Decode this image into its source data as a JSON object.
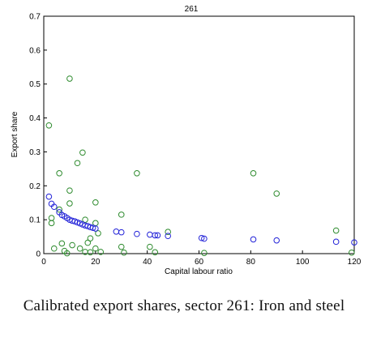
{
  "caption": "Calibrated export shares, sector 261: Iron and steel",
  "chart_data": {
    "type": "scatter",
    "title": "261",
    "xlabel": "Capital labour ratio",
    "ylabel": "Export share",
    "xlim": [
      0,
      120
    ],
    "ylim": [
      0,
      0.7
    ],
    "xticks": [
      0,
      20,
      40,
      60,
      80,
      100,
      120
    ],
    "yticks": [
      0,
      0.1,
      0.2,
      0.3,
      0.4,
      0.5,
      0.6,
      0.7
    ],
    "xtick_labels": [
      "0",
      "20",
      "40",
      "60",
      "80",
      "100",
      "120"
    ],
    "ytick_labels": [
      "0",
      "0.1",
      "0.2",
      "0.3",
      "0.4",
      "0.5",
      "0.6",
      "0.7"
    ],
    "grid": false,
    "series": [
      {
        "color": "#2e8b2e",
        "marker": "open-circle",
        "points": [
          [
            10,
            0.516
          ],
          [
            2,
            0.378
          ],
          [
            15,
            0.298
          ],
          [
            13,
            0.267
          ],
          [
            6,
            0.237
          ],
          [
            36,
            0.237
          ],
          [
            81,
            0.237
          ],
          [
            10,
            0.186
          ],
          [
            90,
            0.177
          ],
          [
            10,
            0.148
          ],
          [
            20,
            0.151
          ],
          [
            6,
            0.13
          ],
          [
            30,
            0.115
          ],
          [
            3,
            0.105
          ],
          [
            16,
            0.1
          ],
          [
            3,
            0.09
          ],
          [
            20,
            0.09
          ],
          [
            21,
            0.06
          ],
          [
            48,
            0.064
          ],
          [
            113,
            0.068
          ],
          [
            18,
            0.045
          ],
          [
            7,
            0.03
          ],
          [
            11,
            0.025
          ],
          [
            17,
            0.032
          ],
          [
            30,
            0.02
          ],
          [
            41,
            0.02
          ],
          [
            4,
            0.015
          ],
          [
            14,
            0.015
          ],
          [
            20,
            0.015
          ],
          [
            8,
            0.008
          ],
          [
            16,
            0.005
          ],
          [
            18,
            0.004
          ],
          [
            22,
            0.005
          ],
          [
            43,
            0.004
          ],
          [
            31,
            0.003
          ],
          [
            62,
            0.002
          ],
          [
            119,
            0.003
          ],
          [
            9,
            0.001
          ]
        ]
      },
      {
        "color": "#2323d8",
        "marker": "open-circle",
        "points": [
          [
            2,
            0.168
          ],
          [
            3,
            0.147
          ],
          [
            4,
            0.138
          ],
          [
            6,
            0.122
          ],
          [
            7,
            0.114
          ],
          [
            8,
            0.11
          ],
          [
            9,
            0.105
          ],
          [
            10,
            0.1
          ],
          [
            11,
            0.097
          ],
          [
            12,
            0.095
          ],
          [
            13,
            0.092
          ],
          [
            14,
            0.089
          ],
          [
            15,
            0.086
          ],
          [
            16,
            0.083
          ],
          [
            17,
            0.081
          ],
          [
            18,
            0.078
          ],
          [
            19,
            0.076
          ],
          [
            20,
            0.074
          ],
          [
            28,
            0.065
          ],
          [
            30,
            0.063
          ],
          [
            36,
            0.058
          ],
          [
            41,
            0.056
          ],
          [
            43,
            0.054
          ],
          [
            44,
            0.054
          ],
          [
            48,
            0.052
          ],
          [
            61,
            0.046
          ],
          [
            62,
            0.044
          ],
          [
            81,
            0.042
          ],
          [
            90,
            0.039
          ],
          [
            113,
            0.035
          ],
          [
            120,
            0.033
          ]
        ]
      }
    ]
  }
}
